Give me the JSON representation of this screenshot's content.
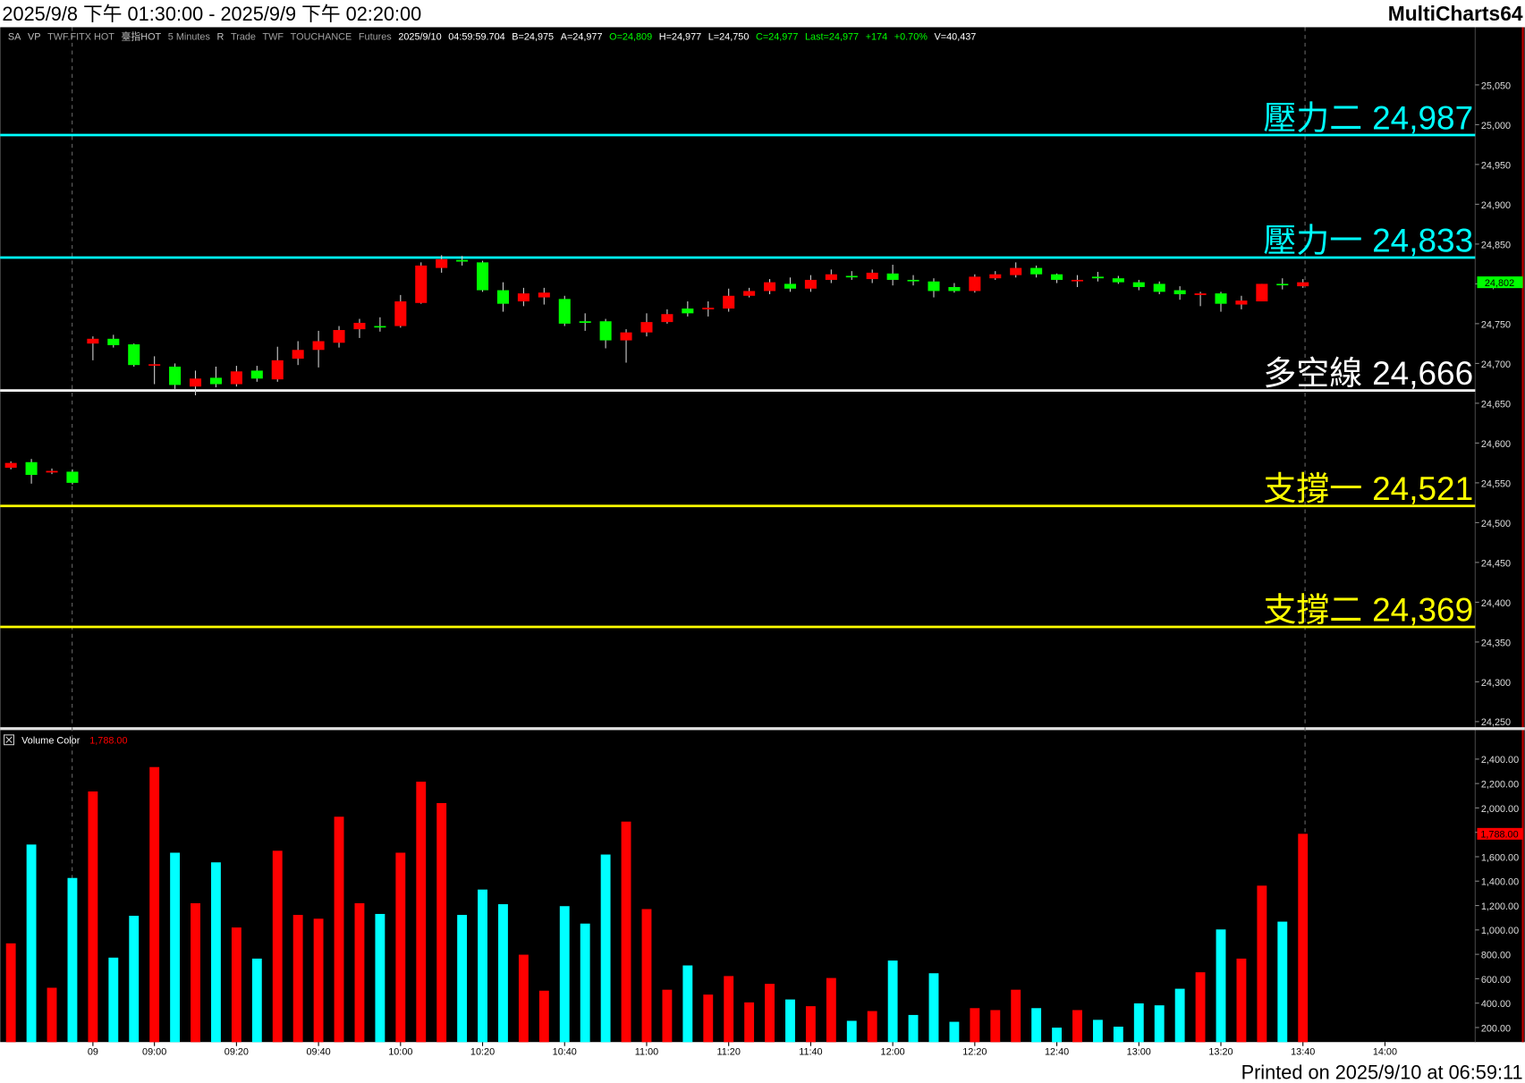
{
  "header": {
    "range": "2025/9/8 下午 01:30:00 - 2025/9/9 下午 02:20:00",
    "app": "MultiCharts64"
  },
  "footer": "Printed on 2025/9/10 at 06:59:11",
  "toolbar": [
    {
      "text": "SA",
      "color": "#c0c0c0"
    },
    {
      "text": "VP",
      "color": "#c0c0c0"
    },
    {
      "text": "TWF.FITX HOT",
      "color": "#a0a0a0"
    },
    {
      "text": "臺指HOT",
      "color": "#c0c0c0"
    },
    {
      "text": "5 Minutes",
      "color": "#a0a0a0"
    },
    {
      "text": "R",
      "color": "#c0c0c0"
    },
    {
      "text": "Trade",
      "color": "#a0a0a0"
    },
    {
      "text": "TWF",
      "color": "#a0a0a0"
    },
    {
      "text": "TOUCHANCE",
      "color": "#a0a0a0"
    },
    {
      "text": "Futures",
      "color": "#a0a0a0"
    },
    {
      "text": "2025/9/10",
      "color": "#ffffff"
    },
    {
      "text": "04:59:59.704",
      "color": "#ffffff"
    },
    {
      "text": "B=24,975",
      "color": "#ffffff"
    },
    {
      "text": "A=24,977",
      "color": "#ffffff"
    },
    {
      "text": "O=24,809",
      "color": "#00ff00"
    },
    {
      "text": "H=24,977",
      "color": "#ffffff"
    },
    {
      "text": "L=24,750",
      "color": "#ffffff"
    },
    {
      "text": "C=24,977",
      "color": "#00ff00"
    },
    {
      "text": "Last=24,977",
      "color": "#00ff00"
    },
    {
      "text": "+174",
      "color": "#00ff00"
    },
    {
      "text": "+0.70%",
      "color": "#00ff00"
    },
    {
      "text": "V=40,437",
      "color": "#ffffff"
    }
  ],
  "chart_data": [
    {
      "type": "candlestick",
      "up_color": "#ff0000",
      "down_color": "#00ff00",
      "wick_color": "#d0d0d0",
      "open": [
        24569,
        24576,
        24563,
        24564,
        24725,
        24731,
        24724,
        24698,
        24696,
        24671,
        24682,
        24674,
        24691,
        24680,
        24706,
        24717,
        24726,
        24743,
        24747,
        24747,
        24776,
        24820,
        24830,
        24827,
        24792,
        24778,
        24783,
        24781,
        24753,
        24753,
        24729,
        24739,
        24752,
        24769,
        24768,
        24769,
        24785,
        24791,
        24800,
        24794,
        24805,
        24810,
        24806,
        24813,
        24805,
        24803,
        24796,
        24791,
        24807,
        24811,
        24820,
        24812,
        24804,
        24809,
        24807,
        24802,
        24800,
        24792,
        24786,
        24788,
        24774,
        24778,
        24800,
        24797
      ],
      "high": [
        24577,
        24580,
        24568,
        24567,
        24734,
        24736,
        24725,
        24709,
        24700,
        24691,
        24696,
        24697,
        24697,
        24721,
        24728,
        24741,
        24747,
        24756,
        24758,
        24786,
        24827,
        24836,
        24835,
        24829,
        24802,
        24795,
        24795,
        24785,
        24763,
        24756,
        24743,
        24763,
        24768,
        24778,
        24778,
        24794,
        24795,
        24806,
        24808,
        24811,
        24818,
        24816,
        24818,
        24824,
        24811,
        24807,
        24801,
        24812,
        24816,
        24827,
        24823,
        24813,
        24811,
        24815,
        24810,
        24805,
        24803,
        24797,
        24790,
        24790,
        24785,
        24800,
        24807,
        24806
      ],
      "low": [
        24567,
        24549,
        24561,
        24548,
        24704,
        24720,
        24696,
        24674,
        24668,
        24660,
        24670,
        24671,
        24677,
        24677,
        24698,
        24695,
        24720,
        24732,
        24740,
        24745,
        24775,
        24814,
        24823,
        24790,
        24765,
        24772,
        24774,
        24747,
        24741,
        24719,
        24701,
        24734,
        24750,
        24759,
        24759,
        24765,
        24783,
        24787,
        24790,
        24790,
        24801,
        24805,
        24801,
        24798,
        24798,
        24783,
        24789,
        24789,
        24805,
        24808,
        24808,
        24801,
        24796,
        24803,
        24800,
        24792,
        24787,
        24780,
        24772,
        24765,
        24768,
        24778,
        24793,
        24795
      ],
      "close": [
        24575,
        24560,
        24565,
        24550,
        24731,
        24723,
        24698,
        24699,
        24673,
        24681,
        24674,
        24690,
        24681,
        24704,
        24717,
        24728,
        24742,
        24751,
        24746,
        24778,
        24823,
        24831,
        24828,
        24792,
        24775,
        24788,
        24789,
        24750,
        24751,
        24729,
        24739,
        24752,
        24762,
        24763,
        24770,
        24785,
        24791,
        24802,
        24794,
        24805,
        24812,
        24809,
        24814,
        24805,
        24804,
        24791,
        24791,
        24809,
        24812,
        24820,
        24812,
        24805,
        24805,
        24807,
        24802,
        24796,
        24790,
        24787,
        24788,
        24775,
        24779,
        24800,
        24799,
        24802
      ],
      "last_label": "24,802",
      "levels": [
        {
          "name": "壓力二",
          "value": 24987,
          "value_label": "24,987",
          "color": "#00ffff"
        },
        {
          "name": "壓力一",
          "value": 24833,
          "value_label": "24,833",
          "color": "#00ffff"
        },
        {
          "name": "多空線",
          "value": 24666,
          "value_label": "24,666",
          "color": "#ffffff"
        },
        {
          "name": "支撐一",
          "value": 24521,
          "value_label": "24,521",
          "color": "#ffff00"
        },
        {
          "name": "支撐二",
          "value": 24369,
          "value_label": "24,369",
          "color": "#ffff00"
        }
      ],
      "ylim": [
        24243,
        25120
      ],
      "yticks": [
        {
          "value": 24250,
          "label": "24,250"
        },
        {
          "value": 24300,
          "label": "24,300"
        },
        {
          "value": 24350,
          "label": "24,350"
        },
        {
          "value": 24400,
          "label": "24,400"
        },
        {
          "value": 24450,
          "label": "24,450"
        },
        {
          "value": 24500,
          "label": "24,500"
        },
        {
          "value": 24550,
          "label": "24,550"
        },
        {
          "value": 24600,
          "label": "24,600"
        },
        {
          "value": 24650,
          "label": "24,650"
        },
        {
          "value": 24700,
          "label": "24,700"
        },
        {
          "value": 24750,
          "label": "24,750"
        },
        {
          "value": 24800,
          "label": "24,800"
        },
        {
          "value": 24850,
          "label": "24,850"
        },
        {
          "value": 24900,
          "label": "24,900"
        },
        {
          "value": 24950,
          "label": "24,950"
        },
        {
          "value": 25000,
          "label": "25,000"
        },
        {
          "value": 25050,
          "label": "25,050"
        }
      ]
    },
    {
      "type": "bar",
      "title": "Volume Color",
      "up_color": "#ff0000",
      "down_color": "#00ffff",
      "values": [
        890,
        1700,
        526,
        1426,
        2135,
        773,
        1116,
        2335,
        1633,
        1219,
        1554,
        1020,
        765,
        1649,
        1123,
        1092,
        1928,
        1219,
        1131,
        1633,
        2215,
        2040,
        1123,
        1331,
        1211,
        797,
        502,
        1195,
        1052,
        1618,
        1888,
        1171,
        510,
        709,
        470,
        622,
        406,
        558,
        430,
        375,
        606,
        255,
        335,
        749,
        303,
        645,
        247,
        359,
        343,
        510,
        359,
        199,
        343,
        263,
        207,
        398,
        382,
        518,
        653,
        1004,
        765,
        1363,
        1068,
        1788
      ],
      "last_label": "1,788.00",
      "ylim": [
        80,
        2630
      ],
      "yticks": [
        {
          "value": 200,
          "label": "200.00"
        },
        {
          "value": 400,
          "label": "400.00"
        },
        {
          "value": 600,
          "label": "600.00"
        },
        {
          "value": 800,
          "label": "800.00"
        },
        {
          "value": 1000,
          "label": "1,000.00"
        },
        {
          "value": 1200,
          "label": "1,200.00"
        },
        {
          "value": 1400,
          "label": "1,400.00"
        },
        {
          "value": 1600,
          "label": "1,600.00"
        },
        {
          "value": 1800,
          "label": "1,800.00"
        },
        {
          "value": 2000,
          "label": "2,000.00"
        },
        {
          "value": 2200,
          "label": "2,200.00"
        },
        {
          "value": 2400,
          "label": "2,400.00"
        }
      ],
      "xlim": [
        -0.52,
        71.4
      ],
      "xticks": [
        {
          "value": 4,
          "label": "09"
        },
        {
          "value": 7,
          "label": "09:00"
        },
        {
          "value": 11,
          "label": "09:20"
        },
        {
          "value": 15,
          "label": "09:40"
        },
        {
          "value": 19,
          "label": "10:00"
        },
        {
          "value": 23,
          "label": "10:20"
        },
        {
          "value": 27,
          "label": "10:40"
        },
        {
          "value": 31,
          "label": "11:00"
        },
        {
          "value": 35,
          "label": "11:20"
        },
        {
          "value": 39,
          "label": "11:40"
        },
        {
          "value": 43,
          "label": "12:00"
        },
        {
          "value": 47,
          "label": "12:20"
        },
        {
          "value": 51,
          "label": "12:40"
        },
        {
          "value": 55,
          "label": "13:00"
        },
        {
          "value": 59,
          "label": "13:20"
        },
        {
          "value": 63,
          "label": "13:40"
        },
        {
          "value": 67,
          "label": "14:00"
        }
      ]
    }
  ]
}
